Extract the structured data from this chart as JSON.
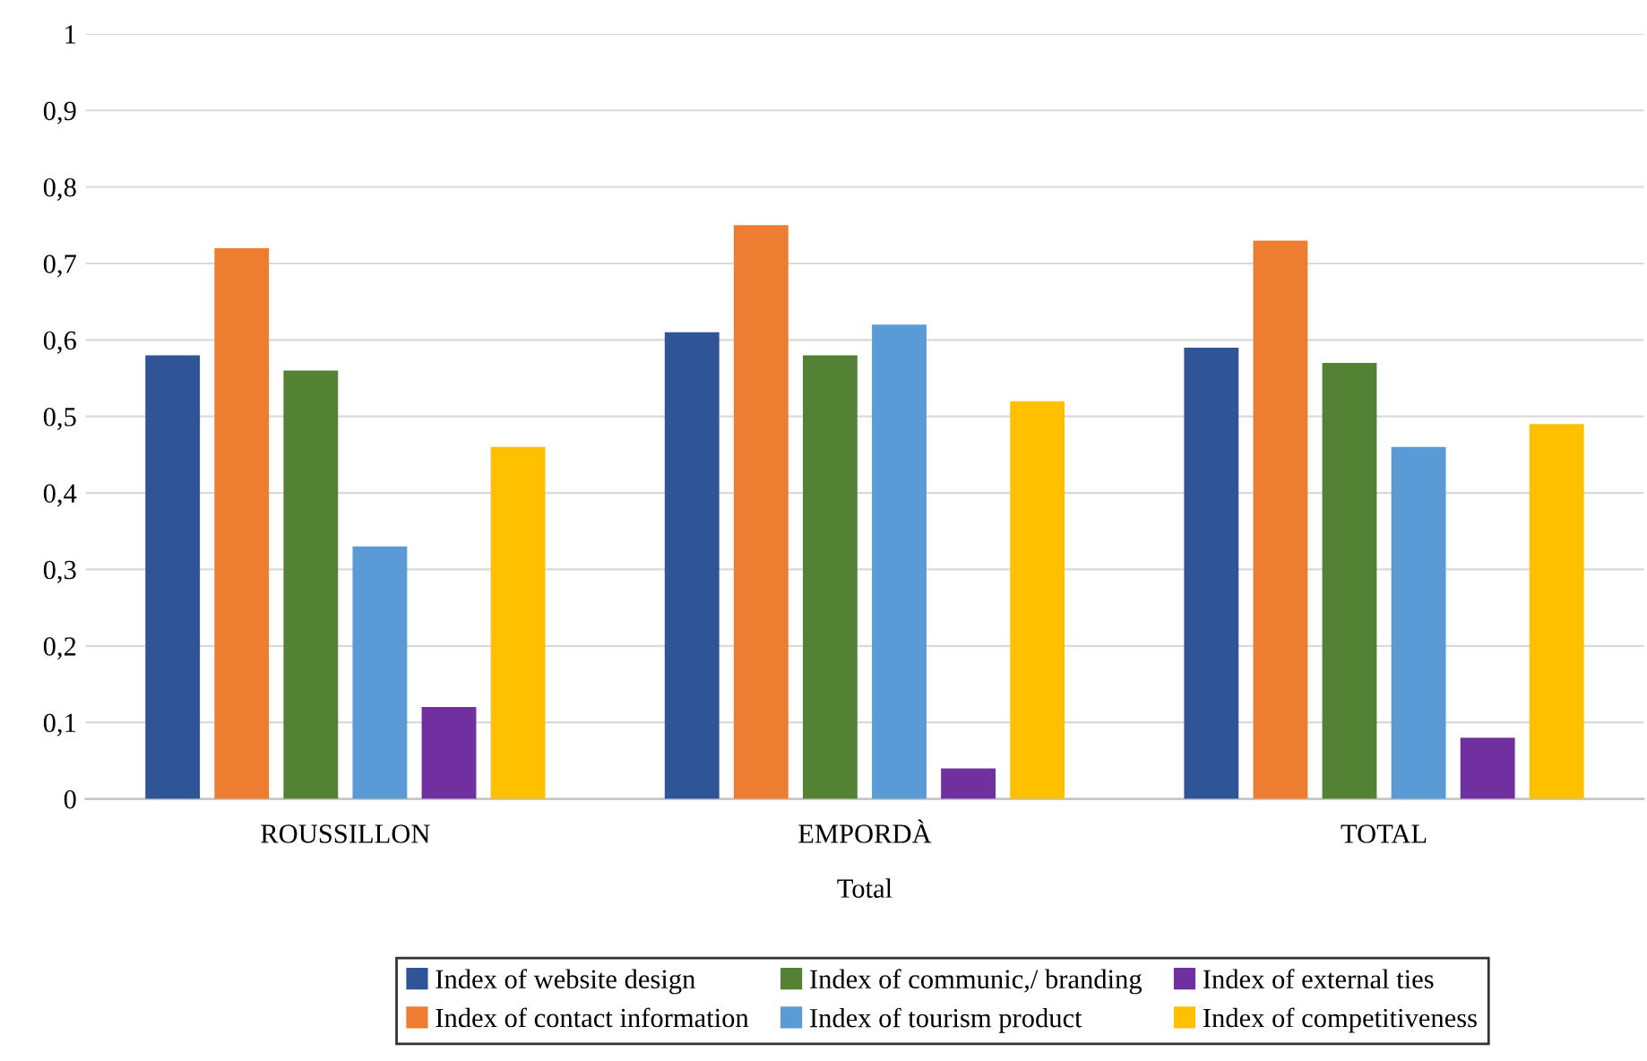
{
  "chart_data": {
    "type": "bar",
    "xlabel": "Total",
    "categories": [
      "ROUSSILLON",
      "EMPORDÀ",
      "TOTAL"
    ],
    "series": [
      {
        "name": "Index of website design",
        "color": "#2f5597",
        "values": [
          0.58,
          0.61,
          0.59
        ]
      },
      {
        "name": "Index of contact information",
        "color": "#ed7d31",
        "values": [
          0.72,
          0.75,
          0.73
        ]
      },
      {
        "name": "Index of communic,/ branding",
        "color": "#548235",
        "values": [
          0.56,
          0.58,
          0.57
        ]
      },
      {
        "name": "Index of tourism product",
        "color": "#5b9bd5",
        "values": [
          0.33,
          0.62,
          0.46
        ]
      },
      {
        "name": "Index of external ties",
        "color": "#7030a0",
        "values": [
          0.12,
          0.04,
          0.08
        ]
      },
      {
        "name": "Index of competitiveness",
        "color": "#ffc000",
        "values": [
          0.46,
          0.52,
          0.49
        ]
      }
    ],
    "ylim": [
      0,
      1
    ],
    "yticks": [
      0,
      {
        "value": 0.1,
        "label": "0,1"
      },
      {
        "value": 0.2,
        "label": "0,2"
      },
      {
        "value": 0.3,
        "label": "0,3"
      },
      {
        "value": 0.4,
        "label": "0,4"
      },
      {
        "value": 0.5,
        "label": "0,5"
      },
      {
        "value": 0.6,
        "label": "0,6"
      },
      {
        "value": 0.7,
        "label": "0,7"
      },
      {
        "value": 0.8,
        "label": "0,8"
      },
      {
        "value": 0.9,
        "label": "0,9"
      },
      1
    ],
    "grid": "y",
    "legend": "bottom"
  }
}
